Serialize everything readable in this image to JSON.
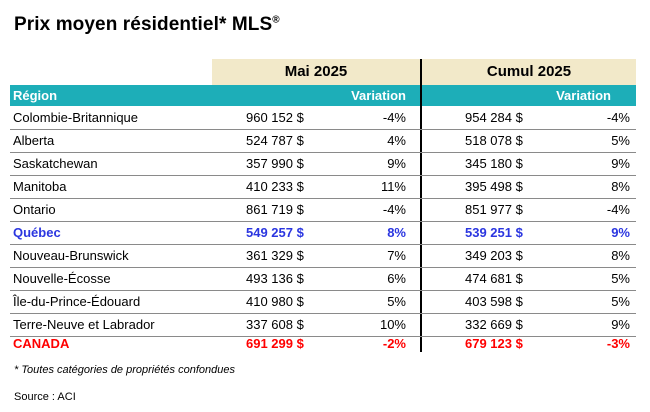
{
  "title": "Prix moyen résidentiel* MLS",
  "title_mark": "®",
  "periods": {
    "may": "Mai 2025",
    "cumul": "Cumul 2025"
  },
  "columns": {
    "region": "Région",
    "variation_may": "Variation",
    "variation_cumul": "Variation"
  },
  "rows": [
    {
      "region": "Colombie-Britannique",
      "price_may": "960 152 $",
      "var_may": "-4%",
      "price_cumul": "954 284 $",
      "var_cumul": "-4%"
    },
    {
      "region": "Alberta",
      "price_may": "524 787 $",
      "var_may": "4%",
      "price_cumul": "518 078 $",
      "var_cumul": "5%"
    },
    {
      "region": "Saskatchewan",
      "price_may": "357 990 $",
      "var_may": "9%",
      "price_cumul": "345 180 $",
      "var_cumul": "9%"
    },
    {
      "region": "Manitoba",
      "price_may": "410 233 $",
      "var_may": "11%",
      "price_cumul": "395 498 $",
      "var_cumul": "8%"
    },
    {
      "region": "Ontario",
      "price_may": "861 719 $",
      "var_may": "-4%",
      "price_cumul": "851 977 $",
      "var_cumul": "-4%"
    },
    {
      "region": "Québec",
      "price_may": "549 257 $",
      "var_may": "8%",
      "price_cumul": "539 251 $",
      "var_cumul": "9%"
    },
    {
      "region": "Nouveau-Brunswick",
      "price_may": "361 329 $",
      "var_may": "7%",
      "price_cumul": "349 203 $",
      "var_cumul": "8%"
    },
    {
      "region": "Nouvelle-Écosse",
      "price_may": "493 136 $",
      "var_may": "6%",
      "price_cumul": "474 681 $",
      "var_cumul": "5%"
    },
    {
      "region": "Île-du-Prince-Édouard",
      "price_may": "410 980 $",
      "var_may": "5%",
      "price_cumul": "403 598 $",
      "var_cumul": "5%"
    },
    {
      "region": "Terre-Neuve et Labrador",
      "price_may": "337 608 $",
      "var_may": "10%",
      "price_cumul": "332 669 $",
      "var_cumul": "9%"
    },
    {
      "region": "CANADA",
      "price_may": "691 299 $",
      "var_may": "-2%",
      "price_cumul": "679 123 $",
      "var_cumul": "-3%"
    }
  ],
  "colors": {
    "header_band": "#f2e9c9",
    "column_band": "#1daeb8",
    "quebec": "#2b36e0",
    "canada": "#ff0000"
  },
  "footnote": "* Toutes catégories de propriétés confondues",
  "source": "Source : ACI"
}
